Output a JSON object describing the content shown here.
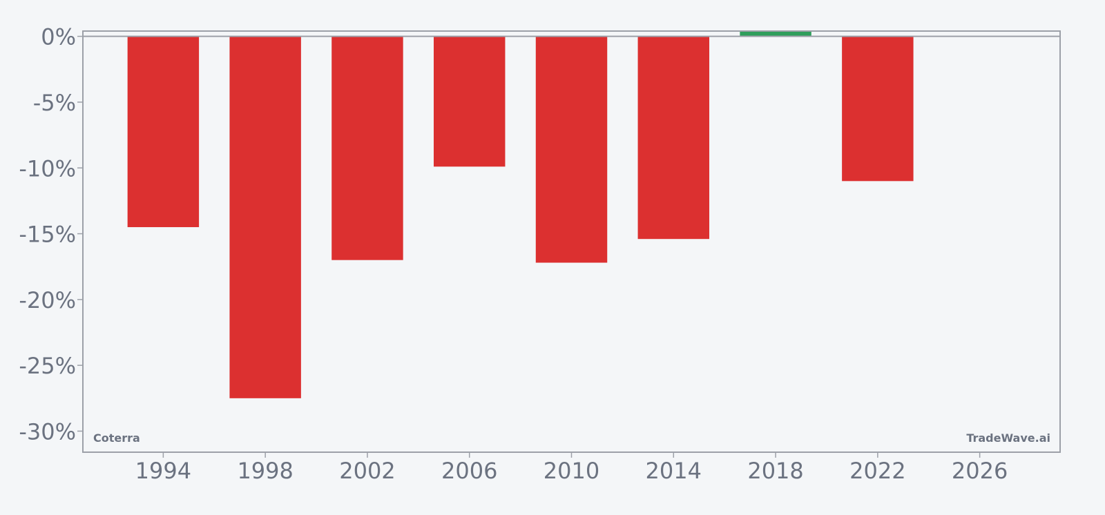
{
  "chart_data": {
    "type": "bar",
    "x": [
      1994,
      1998,
      2002,
      2006,
      2010,
      2014,
      2018,
      2022
    ],
    "values": [
      -14.5,
      -27.5,
      -17.0,
      -9.9,
      -17.2,
      -15.4,
      0.4,
      -11.0
    ],
    "x_ticks": [
      "1994",
      "1998",
      "2002",
      "2006",
      "2010",
      "2014",
      "2018",
      "2022",
      "2026"
    ],
    "x_tick_values": [
      1994,
      1998,
      2002,
      2006,
      2010,
      2014,
      2018,
      2022,
      2026
    ],
    "y_ticks": [
      "0%",
      "-5%",
      "-10%",
      "-15%",
      "-20%",
      "-25%",
      "-30%"
    ],
    "y_tick_values": [
      0,
      -5,
      -10,
      -15,
      -20,
      -25,
      -30
    ],
    "xlim": [
      1990.85,
      1029.15
    ],
    "ylim": [
      -31.6,
      0.4
    ],
    "bar_width_years": 2.8,
    "grid": false,
    "colors": {
      "negative": "#dc3030",
      "positive": "#2e9e5b",
      "axis": "#9ca0a8",
      "text": "#6b7280",
      "background": "#f4f6f8"
    },
    "watermark_left": "Coterra",
    "watermark_right": "TradeWave.ai"
  }
}
